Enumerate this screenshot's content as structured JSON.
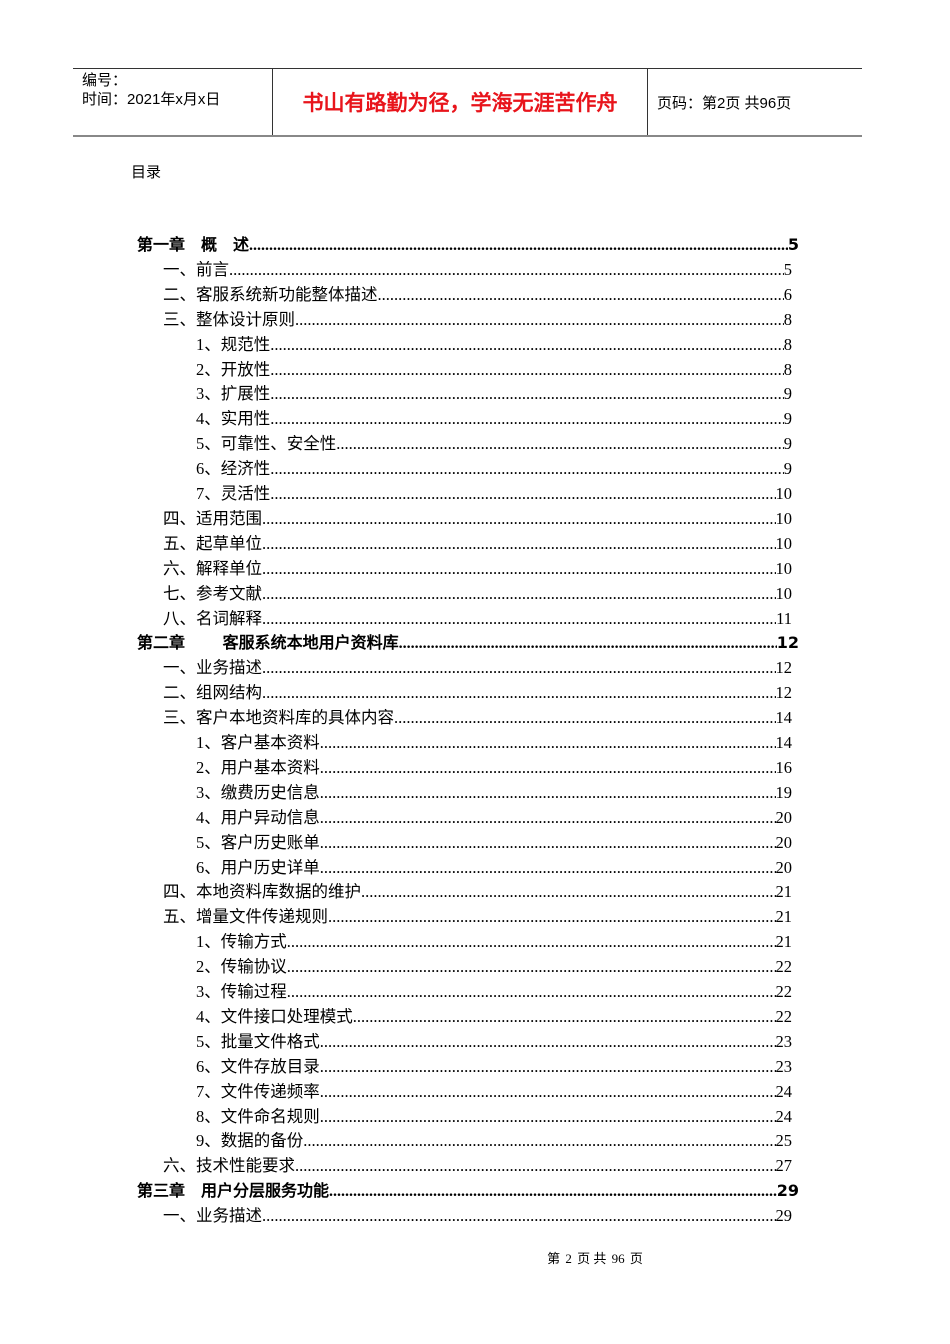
{
  "header": {
    "number_label": "编号：",
    "date_label": "时间：2021年x月x日",
    "motto": "书山有路勤为径，学海无涯苦作舟",
    "page_info": "页码：第2页  共96页"
  },
  "colors": {
    "motto": "#e8141b"
  },
  "toc_title": "目录",
  "toc": [
    {
      "level": 0,
      "label": "第一章　概　述",
      "page": "5"
    },
    {
      "level": 1,
      "label": "一、前言",
      "page": "5"
    },
    {
      "level": 1,
      "label": "二、客服系统新功能整体描述",
      "page": "6"
    },
    {
      "level": 1,
      "label": "三、整体设计原则",
      "page": "8"
    },
    {
      "level": 2,
      "label": "1、规范性",
      "page": "8"
    },
    {
      "level": 2,
      "label": "2、开放性",
      "page": "8"
    },
    {
      "level": 2,
      "label": "3、扩展性",
      "page": "9"
    },
    {
      "level": 2,
      "label": "4、实用性",
      "page": "9"
    },
    {
      "level": 2,
      "label": "5、可靠性、安全性",
      "page": "9"
    },
    {
      "level": 2,
      "label": "6、经济性",
      "page": "9"
    },
    {
      "level": 2,
      "label": "7、灵活性",
      "page": "10"
    },
    {
      "level": 1,
      "label": "四、适用范围",
      "page": "10"
    },
    {
      "level": 1,
      "label": "五、起草单位",
      "page": "10"
    },
    {
      "level": 1,
      "label": "六、解释单位",
      "page": "10"
    },
    {
      "level": 1,
      "label": "七、参考文献",
      "page": "10"
    },
    {
      "level": 1,
      "label": "八、名词解释",
      "page": "11"
    },
    {
      "level": 0,
      "label": "第二章　　 客服系统本地用户资料库",
      "page": "12"
    },
    {
      "level": 1,
      "label": "一、业务描述",
      "page": "12"
    },
    {
      "level": 1,
      "label": "二、组网结构",
      "page": "12"
    },
    {
      "level": 1,
      "label": "三、客户本地资料库的具体内容",
      "page": "14"
    },
    {
      "level": 2,
      "label": "1、客户基本资料",
      "page": "14"
    },
    {
      "level": 2,
      "label": "2、用户基本资料",
      "page": "16"
    },
    {
      "level": 2,
      "label": "3、缴费历史信息",
      "page": "19"
    },
    {
      "level": 2,
      "label": "4、用户异动信息",
      "page": "20"
    },
    {
      "level": 2,
      "label": "5、客户历史账单",
      "page": "20"
    },
    {
      "level": 2,
      "label": "6、用户历史详单",
      "page": "20"
    },
    {
      "level": 1,
      "label": "四、本地资料库数据的维护",
      "page": "21"
    },
    {
      "level": 1,
      "label": "五、增量文件传递规则",
      "page": "21"
    },
    {
      "level": 2,
      "label": "1、传输方式",
      "page": "21"
    },
    {
      "level": 2,
      "label": "2、传输协议",
      "page": "22"
    },
    {
      "level": 2,
      "label": "3、传输过程",
      "page": "22"
    },
    {
      "level": 2,
      "label": "4、文件接口处理模式",
      "page": "22"
    },
    {
      "level": 2,
      "label": "5、批量文件格式",
      "page": "23"
    },
    {
      "level": 2,
      "label": "6、文件存放目录",
      "page": "23"
    },
    {
      "level": 2,
      "label": "7、文件传递频率",
      "page": "24"
    },
    {
      "level": 2,
      "label": "8、文件命名规则",
      "page": "24"
    },
    {
      "level": 2,
      "label": "9、数据的备份",
      "page": "25"
    },
    {
      "level": 1,
      "label": "六、技术性能要求",
      "page": "27"
    },
    {
      "level": 0,
      "label": "第三章　用户分层服务功能",
      "page": "29"
    },
    {
      "level": 1,
      "label": "一、业务描述",
      "page": "29"
    }
  ],
  "footer": {
    "prefix": "第",
    "page": "2",
    "mid": "页  共",
    "total": "96",
    "suffix": "页"
  }
}
